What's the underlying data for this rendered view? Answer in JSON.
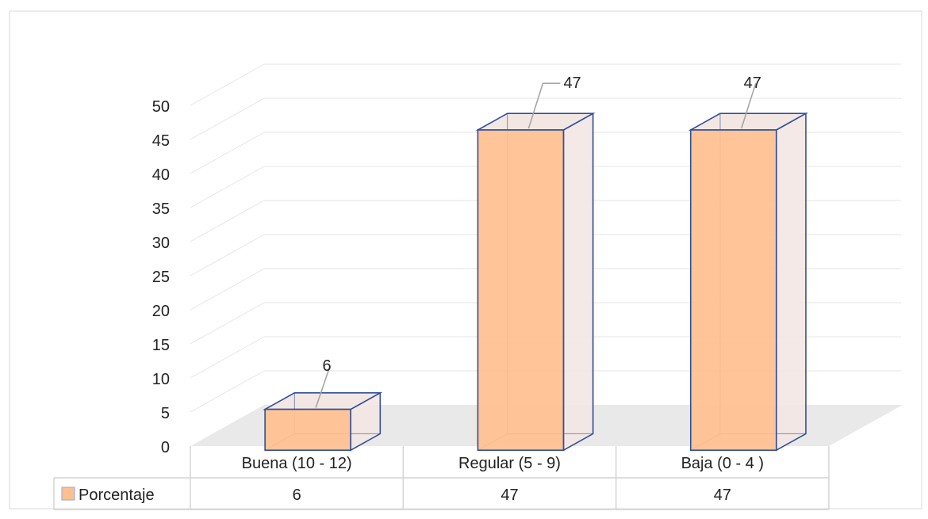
{
  "chart_data": {
    "type": "bar",
    "categories": [
      "Buena (10 - 12)",
      "Regular (5 - 9)",
      "Baja (0 - 4 )"
    ],
    "series": [
      {
        "name": "Porcentaje",
        "values": [
          6,
          47,
          47
        ]
      }
    ],
    "title": "",
    "xlabel": "",
    "ylabel": "",
    "ylim": [
      0,
      50
    ],
    "yticks": [
      0,
      5,
      10,
      15,
      20,
      25,
      30,
      35,
      40,
      45,
      50
    ],
    "grid": true,
    "style": "3d",
    "data_table": true,
    "legend_placement": "data-table-left",
    "colors": {
      "bar_fill": "#ffbf8e",
      "bar_outline": "#2f4f9a",
      "bar_side": "#f3e7e3",
      "floor": "#e9e9e9",
      "grid": "#e6e6e6",
      "table_border": "#d4d4d4"
    }
  }
}
